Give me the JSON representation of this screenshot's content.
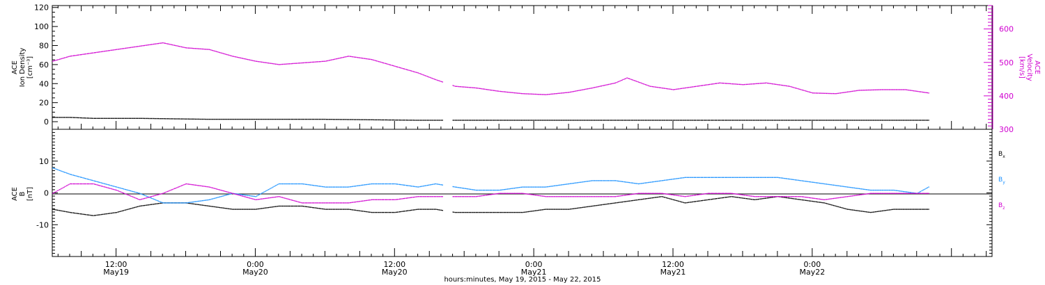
{
  "colors": {
    "background": "#ffffff",
    "axes": "#000000",
    "density": "#000000",
    "velocity": "#d000d0",
    "bx": "#000000",
    "by": "#1890ff",
    "bz": "#d000d0"
  },
  "chart_data": [
    {
      "type": "scatter",
      "panel": "top",
      "ylabel_left": [
        "ACE",
        "Ion Density",
        "[cm⁻³]"
      ],
      "ylabel_right": [
        "ACE",
        "Velocity",
        "[km/s]"
      ],
      "ylim_left": [
        -8,
        122
      ],
      "ylim_right": [
        300,
        670
      ],
      "yticks_left": [
        "0",
        "20",
        "40",
        "60",
        "80",
        "100",
        "120"
      ],
      "yticks_right": [
        "300",
        "400",
        "500",
        "600"
      ],
      "x_range_hours": [
        6.5,
        87.5
      ],
      "data_gap_hours": [
        [
          40.2,
          41.0
        ]
      ],
      "series": [
        {
          "name": "Ion Density",
          "axis": "left",
          "x": [
            6.5,
            8,
            10,
            14,
            20,
            30,
            38,
            40,
            42,
            48,
            54,
            60,
            66,
            72,
            78,
            82
          ],
          "y": [
            5,
            5,
            4,
            4,
            3,
            3,
            2,
            2,
            2,
            2,
            2,
            2,
            2,
            2,
            2,
            2
          ]
        },
        {
          "name": "Velocity",
          "axis": "right",
          "x": [
            6.5,
            8,
            10,
            12,
            14,
            16,
            18,
            20,
            22,
            24,
            26,
            28,
            30,
            32,
            34,
            36,
            38,
            39.5,
            41.2,
            43,
            45,
            47,
            49,
            51,
            53,
            55,
            56,
            58,
            60,
            62,
            64,
            66,
            68,
            70,
            72,
            74,
            76,
            78,
            80,
            82
          ],
          "y": [
            505,
            520,
            530,
            540,
            550,
            560,
            545,
            540,
            520,
            505,
            495,
            500,
            505,
            520,
            510,
            490,
            470,
            450,
            430,
            425,
            415,
            408,
            405,
            412,
            425,
            440,
            455,
            430,
            420,
            430,
            440,
            435,
            440,
            430,
            410,
            408,
            418,
            420,
            420,
            410
          ]
        }
      ]
    },
    {
      "type": "scatter",
      "panel": "bottom",
      "ylabel_left": [
        "ACE",
        "B",
        "[nT]"
      ],
      "ylim": [
        -20,
        20
      ],
      "yticks": [
        "-10",
        "0",
        "10"
      ],
      "x_range_hours": [
        6.5,
        87.5
      ],
      "data_gap_hours": [
        [
          40.2,
          41.0
        ]
      ],
      "xticks": [
        {
          "hour": 12,
          "time": "12:00",
          "date": "May19"
        },
        {
          "hour": 24,
          "time": "0:00",
          "date": "May20"
        },
        {
          "hour": 36,
          "time": "12:00",
          "date": "May20"
        },
        {
          "hour": 48,
          "time": "0:00",
          "date": "May21"
        },
        {
          "hour": 60,
          "time": "12:00",
          "date": "May21"
        },
        {
          "hour": 72,
          "time": "0:00",
          "date": "May22"
        }
      ],
      "series": [
        {
          "name": "Bx",
          "x": [
            6.5,
            8,
            10,
            12,
            14,
            16,
            18,
            20,
            22,
            24,
            26,
            28,
            30,
            32,
            34,
            36,
            38,
            39.5,
            41.2,
            43,
            45,
            47,
            49,
            51,
            53,
            55,
            57,
            59,
            61,
            63,
            65,
            67,
            69,
            71,
            73,
            75,
            77,
            79,
            81,
            82
          ],
          "y": [
            -5,
            -6,
            -7,
            -6,
            -4,
            -3,
            -3,
            -4,
            -5,
            -5,
            -4,
            -4,
            -5,
            -5,
            -6,
            -6,
            -5,
            -5,
            -6,
            -6,
            -6,
            -6,
            -5,
            -5,
            -4,
            -3,
            -2,
            -1,
            -3,
            -2,
            -1,
            -2,
            -1,
            -2,
            -3,
            -5,
            -6,
            -5,
            -5,
            -5
          ]
        },
        {
          "name": "By",
          "x": [
            6.5,
            8,
            10,
            12,
            14,
            16,
            18,
            20,
            22,
            24,
            26,
            28,
            30,
            32,
            34,
            36,
            38,
            39.5,
            41.2,
            43,
            45,
            47,
            49,
            51,
            53,
            55,
            57,
            59,
            61,
            63,
            65,
            67,
            69,
            71,
            73,
            75,
            77,
            79,
            81,
            82
          ],
          "y": [
            8,
            6,
            4,
            2,
            0,
            -3,
            -3,
            -2,
            0,
            -1,
            3,
            3,
            2,
            2,
            3,
            3,
            2,
            3,
            2,
            1,
            1,
            2,
            2,
            3,
            4,
            4,
            3,
            4,
            5,
            5,
            5,
            5,
            5,
            4,
            3,
            2,
            1,
            1,
            0,
            2
          ]
        },
        {
          "name": "Bz",
          "x": [
            6.5,
            8,
            10,
            12,
            14,
            16,
            18,
            20,
            22,
            24,
            26,
            28,
            30,
            32,
            34,
            36,
            38,
            39.5,
            41.2,
            43,
            45,
            47,
            49,
            51,
            53,
            55,
            57,
            59,
            61,
            63,
            65,
            67,
            69,
            71,
            73,
            75,
            77,
            79,
            81,
            82
          ],
          "y": [
            0,
            3,
            3,
            1,
            -2,
            0,
            3,
            2,
            0,
            -2,
            -1,
            -3,
            -3,
            -3,
            -2,
            -2,
            -1,
            -1,
            -1,
            -1,
            0,
            0,
            -1,
            -1,
            -1,
            -1,
            0,
            0,
            -1,
            0,
            0,
            -1,
            -1,
            -1,
            -2,
            -1,
            0,
            0,
            0,
            0
          ]
        }
      ]
    }
  ],
  "labels": {
    "bx_main": "B",
    "bx_sub": "x",
    "by_main": "B",
    "by_sub": "y",
    "bz_main": "B",
    "bz_sub": "z",
    "xaxis_title": "hours:minutes, May 19, 2015 - May 22, 2015"
  }
}
